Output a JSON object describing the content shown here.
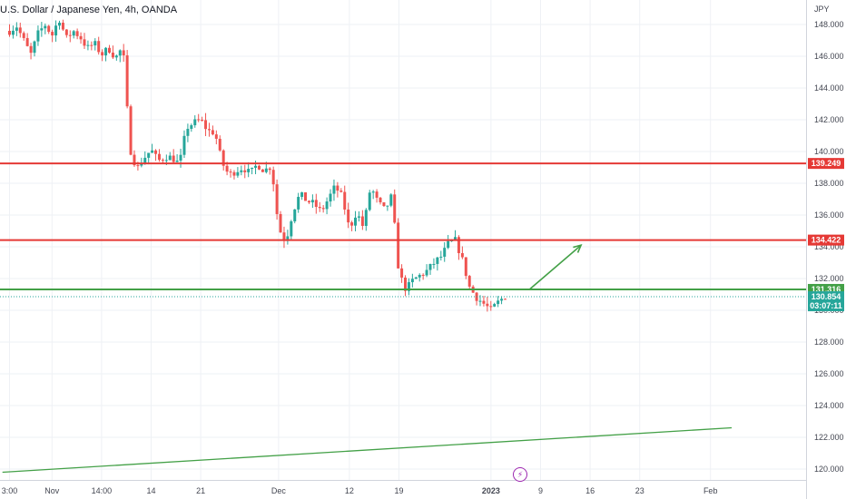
{
  "header": {
    "title": "U.S. Dollar / Japanese Yen, 4h, OANDA",
    "currency": "JPY"
  },
  "colors": {
    "up": "#26a69a",
    "down": "#ef5350",
    "resistance": "#e53935",
    "support": "#43a047",
    "grid": "#eef1f5",
    "text": "#434651"
  },
  "events_icon": "lightning-icon",
  "chart_data": {
    "type": "candlestick",
    "symbol": "USDJPY",
    "interval": "4h",
    "broker": "OANDA",
    "y_range": [
      119.0,
      150.0
    ],
    "y_ticks": [
      "148.000",
      "146.000",
      "144.000",
      "142.000",
      "140.000",
      "138.000",
      "136.000",
      "134.000",
      "132.000",
      "130.000",
      "128.000",
      "126.000",
      "124.000",
      "122.000",
      "120.000"
    ],
    "x_ticks": [
      "3:00",
      "Nov",
      "14:00",
      "14",
      "21",
      "Dec",
      "12",
      "19",
      "2023",
      "9",
      "16",
      "23",
      "Feb"
    ],
    "bold_x_tick": "2023",
    "x_tick_positions": [
      0,
      6,
      13,
      20,
      27,
      38,
      48,
      55,
      68,
      75,
      82,
      89,
      99
    ],
    "price_path": [
      [
        0,
        147.6
      ],
      [
        1,
        147.9
      ],
      [
        2,
        147.0
      ],
      [
        3,
        146.1
      ],
      [
        4,
        147.4
      ],
      [
        5,
        148.0
      ],
      [
        6,
        147.3
      ],
      [
        7,
        148.4
      ],
      [
        8,
        147.1
      ],
      [
        9,
        147.6
      ],
      [
        10,
        147.2
      ],
      [
        11,
        146.5
      ],
      [
        12,
        146.8
      ],
      [
        13,
        146.1
      ],
      [
        14,
        146.5
      ],
      [
        15,
        145.9
      ],
      [
        16,
        146.6
      ],
      [
        17,
        140.2
      ],
      [
        18,
        138.9
      ],
      [
        19,
        139.6
      ],
      [
        20,
        140.1
      ],
      [
        21,
        139.4
      ],
      [
        22,
        139.7
      ],
      [
        23,
        139.6
      ],
      [
        24,
        139.2
      ],
      [
        25,
        141.5
      ],
      [
        26,
        141.8
      ],
      [
        27,
        142.0
      ],
      [
        28,
        141.3
      ],
      [
        29,
        141.2
      ],
      [
        30,
        139.3
      ],
      [
        31,
        138.5
      ],
      [
        32,
        138.8
      ],
      [
        33,
        139.0
      ],
      [
        34,
        138.6
      ],
      [
        35,
        139.2
      ],
      [
        36,
        138.8
      ],
      [
        37,
        139.1
      ],
      [
        38,
        135.2
      ],
      [
        39,
        134.3
      ],
      [
        40,
        136.2
      ],
      [
        41,
        137.3
      ],
      [
        42,
        136.9
      ],
      [
        43,
        136.7
      ],
      [
        44,
        136.2
      ],
      [
        45,
        137.0
      ],
      [
        46,
        137.8
      ],
      [
        47,
        137.1
      ],
      [
        48,
        135.1
      ],
      [
        49,
        136.2
      ],
      [
        50,
        135.2
      ],
      [
        51,
        137.8
      ],
      [
        52,
        136.8
      ],
      [
        53,
        136.3
      ],
      [
        54,
        137.2
      ],
      [
        55,
        132.3
      ],
      [
        56,
        131.3
      ],
      [
        57,
        131.9
      ],
      [
        58,
        132.2
      ],
      [
        59,
        132.5
      ],
      [
        60,
        133.0
      ],
      [
        61,
        133.4
      ],
      [
        62,
        134.2
      ],
      [
        63,
        134.4
      ],
      [
        64,
        133.1
      ],
      [
        65,
        131.4
      ],
      [
        66,
        130.8
      ],
      [
        67,
        130.4
      ],
      [
        68,
        130.0
      ],
      [
        69,
        130.5
      ],
      [
        70,
        130.9
      ]
    ],
    "levels": [
      {
        "name": "resistance",
        "value": 139.249,
        "label": "139.249",
        "color": "#e53935"
      },
      {
        "name": "resistance",
        "value": 134.422,
        "label": "134.422",
        "color": "#e53935"
      },
      {
        "name": "support",
        "value": 131.316,
        "label": "131.316",
        "color": "#43a047"
      }
    ],
    "current_price": {
      "value": 130.854,
      "label": "130.854",
      "countdown": "03:07:11",
      "color": "#26a69a"
    },
    "trendline": {
      "from": [
        -1,
        119.8
      ],
      "to": [
        102,
        122.6
      ],
      "color": "#43a047"
    },
    "projection_arrow": {
      "points": [
        [
          76,
          131.316
        ],
        [
          82,
          134.1
        ]
      ],
      "color": "#43a047"
    }
  }
}
